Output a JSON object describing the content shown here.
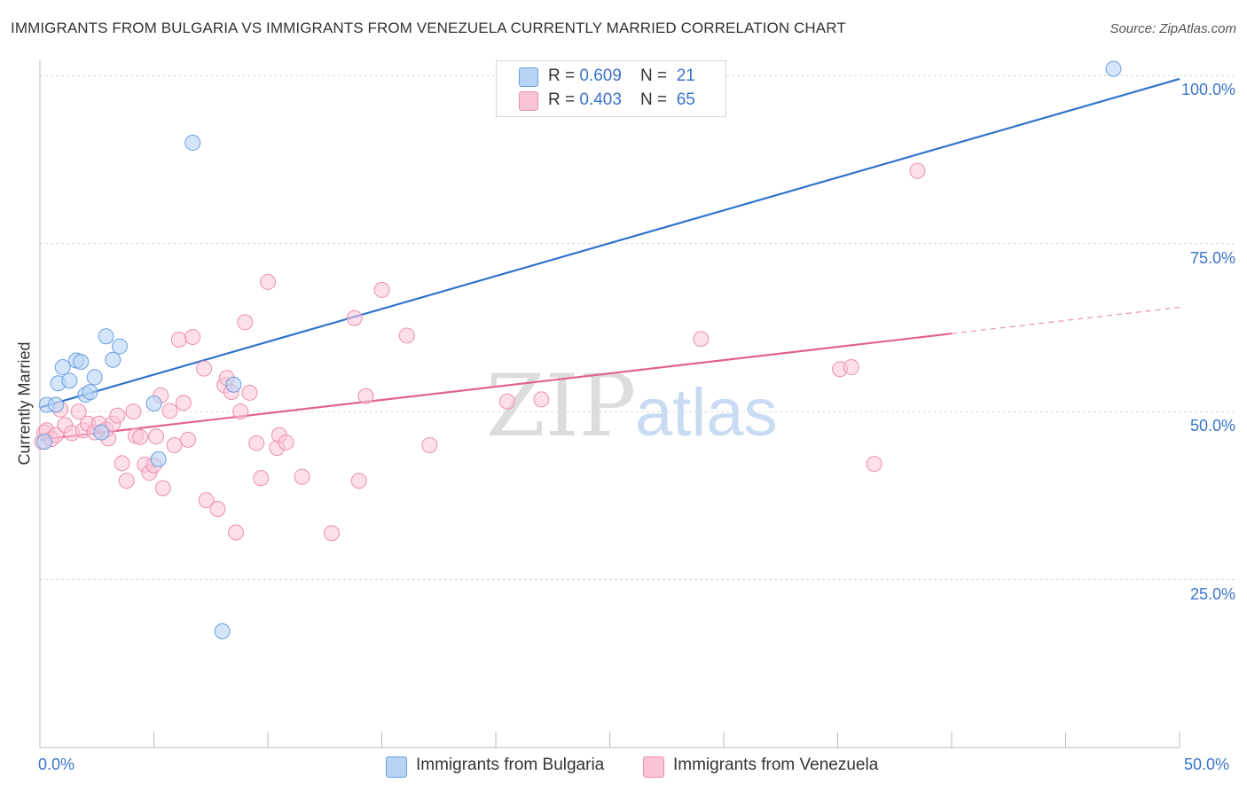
{
  "header": {
    "title": "IMMIGRANTS FROM BULGARIA VS IMMIGRANTS FROM VENEZUELA CURRENTLY MARRIED CORRELATION CHART",
    "source": "Source: ZipAtlas.com"
  },
  "legend": {
    "series1": {
      "r_label": "R = ",
      "r_value": "0.609",
      "n_label": "N = ",
      "n_value": "21"
    },
    "series2": {
      "r_label": "R = ",
      "r_value": "0.403",
      "n_label": "N = ",
      "n_value": "65"
    }
  },
  "watermark": {
    "zip": "ZIP",
    "atlas": "atlas"
  },
  "colors": {
    "blue_fill": "#b8d3f5",
    "blue_stroke": "#6a9fe0",
    "blue_line": "#2e72cc",
    "pink_fill": "#f9c4d6",
    "pink_stroke": "#ec8fb0",
    "pink_line": "#e0628f",
    "grid": "#d6d6d6",
    "axis_text": "#3a74c9"
  },
  "chart_data": {
    "type": "scatter",
    "title": "IMMIGRANTS FROM BULGARIA VS IMMIGRANTS FROM VENEZUELA CURRENTLY MARRIED CORRELATION CHART",
    "xlabel": "",
    "ylabel": "Currently Married",
    "xlim": [
      0,
      50
    ],
    "ylim": [
      0,
      102
    ],
    "x_tick_labels": [
      "0.0%",
      "50.0%"
    ],
    "y_ticks": [
      25,
      50,
      75,
      100
    ],
    "y_tick_labels": [
      "25.0%",
      "50.0%",
      "75.0%",
      "100.0%"
    ],
    "grid": true,
    "series": [
      {
        "name": "Immigrants from Bulgaria",
        "color": "blue",
        "R": 0.609,
        "N": 21,
        "points": [
          [
            0.3,
            51.0
          ],
          [
            0.7,
            51.0
          ],
          [
            0.8,
            54.2
          ],
          [
            1.0,
            56.6
          ],
          [
            1.3,
            54.6
          ],
          [
            1.6,
            57.6
          ],
          [
            1.8,
            57.4
          ],
          [
            2.0,
            52.5
          ],
          [
            2.2,
            52.9
          ],
          [
            2.4,
            55.1
          ],
          [
            2.7,
            46.9
          ],
          [
            2.9,
            61.2
          ],
          [
            3.2,
            57.7
          ],
          [
            3.5,
            59.7
          ],
          [
            5.0,
            51.2
          ],
          [
            5.2,
            42.9
          ],
          [
            6.7,
            90.0
          ],
          [
            8.0,
            17.3
          ],
          [
            8.5,
            54.0
          ],
          [
            47.1,
            101.0
          ],
          [
            0.2,
            45.5
          ]
        ],
        "trend": {
          "x": [
            0,
            50
          ],
          "y": [
            50.6,
            99.5
          ]
        }
      },
      {
        "name": "Immigrants from Venezuela",
        "color": "pink",
        "R": 0.403,
        "N": 65,
        "points": [
          [
            0.1,
            45.5
          ],
          [
            0.2,
            46.9
          ],
          [
            0.3,
            47.2
          ],
          [
            0.5,
            45.9
          ],
          [
            0.7,
            46.5
          ],
          [
            0.9,
            50.3
          ],
          [
            1.1,
            48.0
          ],
          [
            1.4,
            46.8
          ],
          [
            1.7,
            50.0
          ],
          [
            1.9,
            47.2
          ],
          [
            2.1,
            48.2
          ],
          [
            2.4,
            46.9
          ],
          [
            2.6,
            48.2
          ],
          [
            2.9,
            47.3
          ],
          [
            3.0,
            46.0
          ],
          [
            3.2,
            48.2
          ],
          [
            3.4,
            49.4
          ],
          [
            3.6,
            42.3
          ],
          [
            3.8,
            39.7
          ],
          [
            4.1,
            50.0
          ],
          [
            4.2,
            46.4
          ],
          [
            4.4,
            46.2
          ],
          [
            4.6,
            42.1
          ],
          [
            4.8,
            40.9
          ],
          [
            5.0,
            42.0
          ],
          [
            5.1,
            46.3
          ],
          [
            5.3,
            52.4
          ],
          [
            5.4,
            38.6
          ],
          [
            5.7,
            50.1
          ],
          [
            5.9,
            45.0
          ],
          [
            6.1,
            60.7
          ],
          [
            6.3,
            51.3
          ],
          [
            6.5,
            45.8
          ],
          [
            6.7,
            61.1
          ],
          [
            7.2,
            56.4
          ],
          [
            7.3,
            36.8
          ],
          [
            7.8,
            35.5
          ],
          [
            8.1,
            53.9
          ],
          [
            8.2,
            55.0
          ],
          [
            8.4,
            52.9
          ],
          [
            8.6,
            32.0
          ],
          [
            8.8,
            50.0
          ],
          [
            9.0,
            63.3
          ],
          [
            9.2,
            52.8
          ],
          [
            9.5,
            45.3
          ],
          [
            9.7,
            40.1
          ],
          [
            10.0,
            69.3
          ],
          [
            10.4,
            44.6
          ],
          [
            10.5,
            46.5
          ],
          [
            10.8,
            45.4
          ],
          [
            11.5,
            40.3
          ],
          [
            12.8,
            31.9
          ],
          [
            13.8,
            63.9
          ],
          [
            14.0,
            39.7
          ],
          [
            14.3,
            52.3
          ],
          [
            15.0,
            68.1
          ],
          [
            16.1,
            61.3
          ],
          [
            17.1,
            45.0
          ],
          [
            20.5,
            51.5
          ],
          [
            22.0,
            51.8
          ],
          [
            29.0,
            60.8
          ],
          [
            35.1,
            56.3
          ],
          [
            35.6,
            56.6
          ],
          [
            36.6,
            42.2
          ],
          [
            38.5,
            85.8
          ]
        ],
        "trend": {
          "x": [
            0,
            40
          ],
          "y": [
            45.8,
            61.6
          ]
        },
        "trend_dashed": {
          "x": [
            40,
            50
          ],
          "y": [
            61.6,
            65.5
          ]
        }
      }
    ]
  }
}
